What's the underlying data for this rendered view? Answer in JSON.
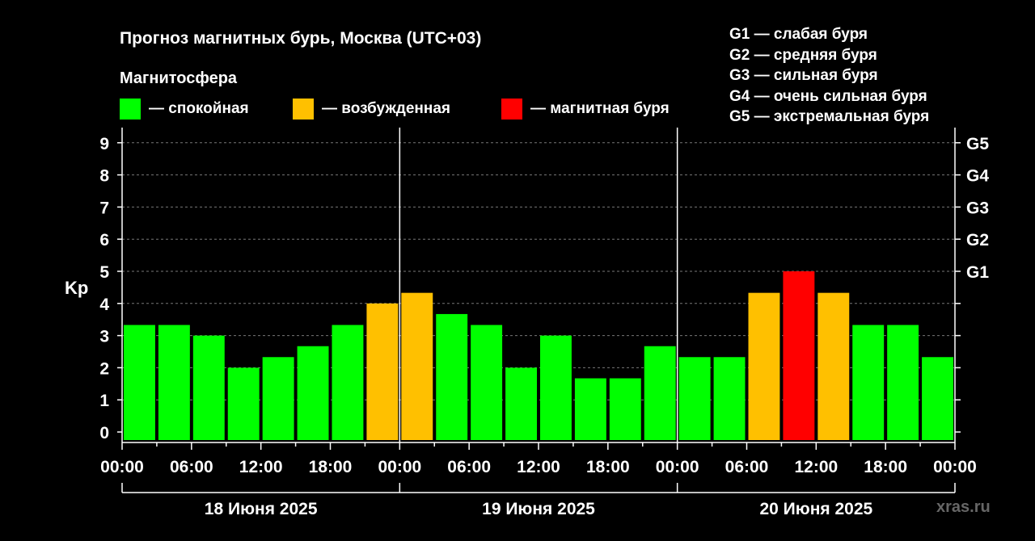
{
  "title": "Прогноз магнитных бурь, Москва (UTC+03)",
  "subtitle": "Магнитосфера",
  "legend": [
    {
      "label": "— спокойная",
      "color": "#00ff00"
    },
    {
      "label": "— возбужденная",
      "color": "#ffc000"
    },
    {
      "label": "— магнитная буря",
      "color": "#ff0000"
    }
  ],
  "g_legend": [
    "G1 — слабая буря",
    "G2 — средняя буря",
    "G3 — сильная буря",
    "G4 — очень сильная буря",
    "G5 — экстремальная буря"
  ],
  "watermark": "xras.ru",
  "chart_data": {
    "type": "bar",
    "ylabel": "Kp",
    "ylim": [
      0,
      9
    ],
    "y_ticks": [
      "0",
      "1",
      "2",
      "3",
      "4",
      "5",
      "6",
      "7",
      "8",
      "9"
    ],
    "right_ticks": [
      {
        "value": 5,
        "label": "G1"
      },
      {
        "value": 6,
        "label": "G2"
      },
      {
        "value": 7,
        "label": "G3"
      },
      {
        "value": 8,
        "label": "G4"
      },
      {
        "value": 9,
        "label": "G5"
      }
    ],
    "x_tick_labels": [
      "00:00",
      "06:00",
      "12:00",
      "18:00",
      "00:00",
      "06:00",
      "12:00",
      "18:00",
      "00:00",
      "06:00",
      "12:00",
      "18:00",
      "00:00"
    ],
    "days": [
      "18 Июня 2025",
      "19 Июня 2025",
      "20 Июня 2025"
    ],
    "grid": "dashed horizontal",
    "interval_hours": 3,
    "values": [
      3.33,
      3.33,
      3,
      2,
      2.33,
      2.67,
      3.33,
      4,
      4.33,
      3.67,
      3.33,
      2,
      3,
      1.67,
      1.67,
      2.67,
      2.33,
      2.33,
      4.33,
      5,
      4.33,
      3.33,
      3.33,
      2.33
    ],
    "colors": [
      "#00ff00",
      "#00ff00",
      "#00ff00",
      "#00ff00",
      "#00ff00",
      "#00ff00",
      "#00ff00",
      "#ffc000",
      "#ffc000",
      "#00ff00",
      "#00ff00",
      "#00ff00",
      "#00ff00",
      "#00ff00",
      "#00ff00",
      "#00ff00",
      "#00ff00",
      "#00ff00",
      "#ffc000",
      "#ff0000",
      "#ffc000",
      "#00ff00",
      "#00ff00",
      "#00ff00"
    ]
  }
}
